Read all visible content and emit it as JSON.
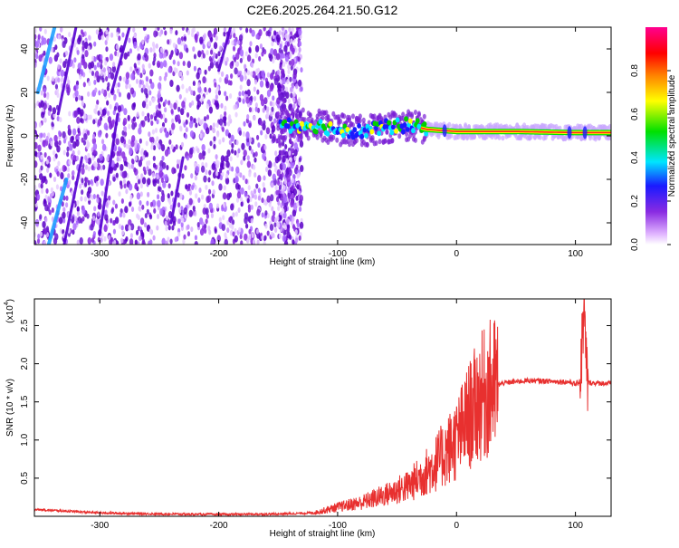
{
  "title": "C2E6.2025.264.21.50.G12",
  "chart_data": [
    {
      "type": "heatmap",
      "xlabel": "Height of straight line (km)",
      "ylabel": "Frequency (Hz)",
      "xlim": [
        -355,
        130
      ],
      "ylim": [
        -50,
        50
      ],
      "xticks": [
        -300,
        -200,
        -100,
        0,
        100
      ],
      "yticks": [
        -40,
        -20,
        0,
        20,
        40
      ],
      "colorbar": {
        "label": "Normalized spectral amplitude",
        "range": [
          0.0,
          1.0
        ],
        "ticks": [
          "0.0",
          "0.2",
          "0.4",
          "0.6",
          "0.8"
        ],
        "colors": [
          "#ffffff",
          "#e0b3ff",
          "#8a2be2",
          "#1a1aff",
          "#00e5ff",
          "#00e000",
          "#ffff00",
          "#ff8000",
          "#ff0000",
          "#ff0090"
        ]
      },
      "features": {
        "noise_region_x": [
          -355,
          -145
        ],
        "signal_track": [
          {
            "x": -148,
            "y": 5
          },
          {
            "x": -120,
            "y": 5
          },
          {
            "x": -100,
            "y": 3
          },
          {
            "x": -80,
            "y": 2
          },
          {
            "x": -60,
            "y": 4
          },
          {
            "x": -40,
            "y": 5
          },
          {
            "x": -25,
            "y": 3
          },
          {
            "x": 0,
            "y": 2
          },
          {
            "x": 50,
            "y": 2
          },
          {
            "x": 100,
            "y": 1.5
          },
          {
            "x": 130,
            "y": 1.5
          }
        ]
      }
    },
    {
      "type": "line",
      "xlabel": "Height of straight line (km)",
      "ylabel": "SNR (10 * v/v)",
      "scale_label": "(x10",
      "scale_exponent": "4",
      "y_scale": 10000,
      "xlim": [
        -355,
        130
      ],
      "ylim": [
        0,
        28500
      ],
      "xticks": [
        -300,
        -200,
        -100,
        0,
        100
      ],
      "yticks": [
        "0.5",
        "1.0",
        "1.5",
        "2.0",
        "2.5"
      ],
      "series": [
        {
          "color": "#e8302f",
          "points": [
            {
              "x": -355,
              "y": 900
            },
            {
              "x": -300,
              "y": 450
            },
            {
              "x": -250,
              "y": 300
            },
            {
              "x": -200,
              "y": 250
            },
            {
              "x": -150,
              "y": 300
            },
            {
              "x": -120,
              "y": 450
            },
            {
              "x": -100,
              "y": 1200
            },
            {
              "x": -80,
              "y": 1800
            },
            {
              "x": -60,
              "y": 2800
            },
            {
              "x": -40,
              "y": 4000
            },
            {
              "x": -20,
              "y": 6500
            },
            {
              "x": 0,
              "y": 10000
            },
            {
              "x": 10,
              "y": 13000
            },
            {
              "x": 20,
              "y": 15500
            },
            {
              "x": 30,
              "y": 17000
            },
            {
              "x": 40,
              "y": 17500
            },
            {
              "x": 60,
              "y": 17800
            },
            {
              "x": 80,
              "y": 17700
            },
            {
              "x": 95,
              "y": 17600
            },
            {
              "x": 100,
              "y": 17300
            },
            {
              "x": 104,
              "y": 17700
            },
            {
              "x": 107,
              "y": 27000
            },
            {
              "x": 110,
              "y": 17500
            },
            {
              "x": 130,
              "y": 17400
            }
          ]
        }
      ]
    }
  ]
}
